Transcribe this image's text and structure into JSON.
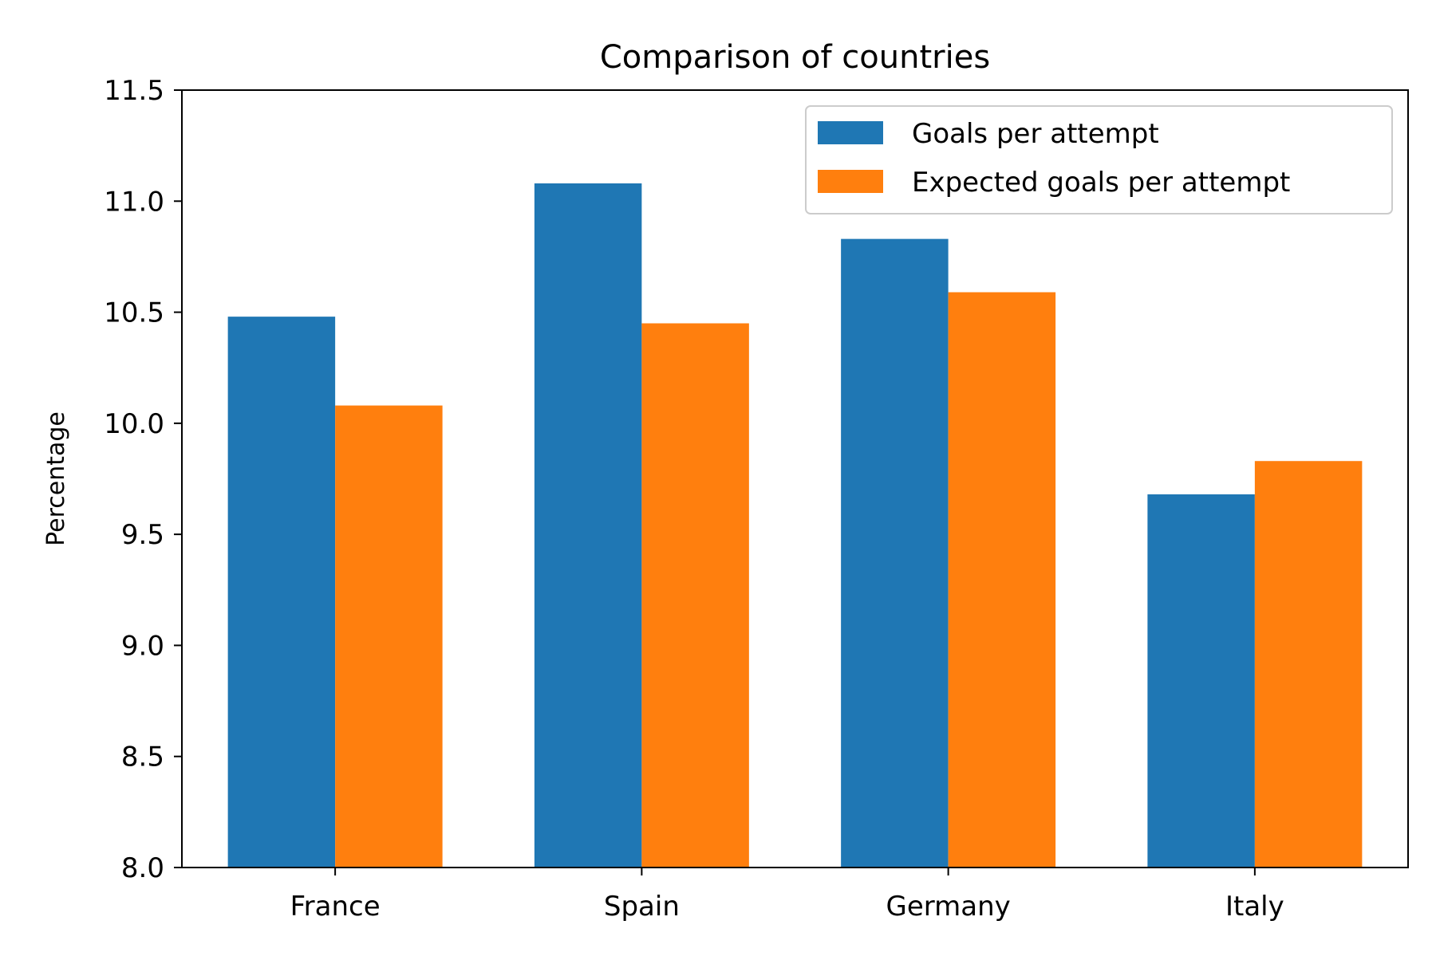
{
  "chart_data": {
    "type": "bar",
    "title": "Comparison of countries",
    "xlabel": "",
    "ylabel": "Percentage",
    "categories": [
      "France",
      "Spain",
      "Germany",
      "Italy"
    ],
    "series": [
      {
        "name": "Goals per attempt",
        "color": "#1f77b4",
        "values": [
          10.48,
          11.08,
          10.83,
          9.68
        ]
      },
      {
        "name": "Expected goals per attempt",
        "color": "#ff7f0e",
        "values": [
          10.08,
          10.45,
          10.59,
          9.83
        ]
      }
    ],
    "ylim": [
      8.0,
      11.5
    ],
    "yticks": [
      "8.0",
      "8.5",
      "9.0",
      "9.5",
      "10.0",
      "10.5",
      "11.0",
      "11.5"
    ],
    "grid": false,
    "legend_position": "top-right"
  }
}
